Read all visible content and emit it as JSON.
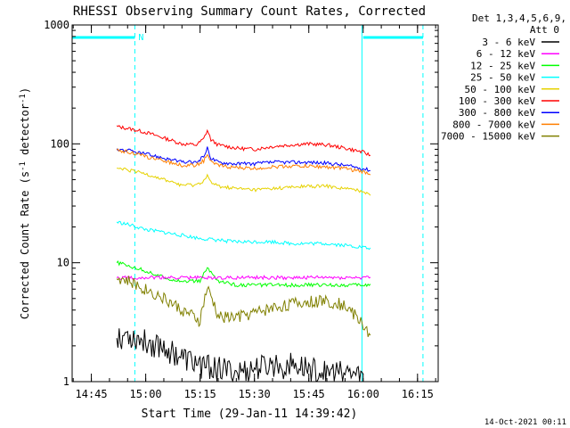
{
  "chart_data": {
    "type": "line",
    "title": "RHESSI Observing Summary Count Rates, Corrected",
    "xlabel": "Start Time (29-Jan-11 14:39:42)",
    "ylabel": "Corrected Count Rate (s",
    "ylabel_sup1": "-1",
    "ylabel_mid": " detector",
    "ylabel_sup2": "-1",
    "ylabel_end": ")",
    "yscale": "log",
    "ylim": [
      1,
      1000
    ],
    "xlim": [
      "14:39:42",
      "16:20:42"
    ],
    "x_ticks": [
      "14:45",
      "15:00",
      "15:15",
      "15:30",
      "15:45",
      "16:00",
      "16:15"
    ],
    "y_ticks": [
      "1",
      "10",
      "100",
      "1000"
    ],
    "grid": false,
    "legend": {
      "placement": "right",
      "header": [
        "Det 1,3,4,5,6,9,",
        "Att 0"
      ],
      "entries": [
        {
          "label": "3 - 6 keV",
          "color": "#000000"
        },
        {
          "label": "6 - 12 keV",
          "color": "#ff00ff"
        },
        {
          "label": "12 - 25 keV",
          "color": "#00ff00"
        },
        {
          "label": "25 - 50 keV",
          "color": "#00ffff"
        },
        {
          "label": "50 - 100 keV",
          "color": "#e6d200"
        },
        {
          "label": "100 - 300 keV",
          "color": "#ff0000"
        },
        {
          "label": "300 - 800 keV",
          "color": "#0000ff"
        },
        {
          "label": "800 - 7000 keV",
          "color": "#ff7f00"
        },
        {
          "label": "7000 - 15000 keV",
          "color": "#808000"
        }
      ]
    },
    "annotations": {
      "night_label": "N",
      "night_bars": [
        {
          "from": "14:39:42",
          "to": "14:57:00"
        },
        {
          "from": "16:00:00",
          "to": "16:16:30"
        }
      ],
      "vlines_solid": [
        "14:39:42",
        "15:59:40"
      ],
      "vlines_dashed": [
        "14:57:00",
        "16:16:30"
      ]
    },
    "series": [
      {
        "name": "100 - 300 keV",
        "color": "#ff0000",
        "x": [
          "14:52",
          "14:55",
          "15:00",
          "15:05",
          "15:10",
          "15:14",
          "15:16",
          "15:17",
          "15:18",
          "15:20",
          "15:25",
          "15:30",
          "15:35",
          "15:40",
          "15:45",
          "15:50",
          "15:55",
          "16:00",
          "16:02"
        ],
        "y": [
          140,
          135,
          125,
          112,
          100,
          98,
          110,
          130,
          108,
          98,
          92,
          90,
          95,
          98,
          100,
          98,
          92,
          85,
          80
        ]
      },
      {
        "name": "300 - 800 keV",
        "color": "#0000ff",
        "x": [
          "14:52",
          "14:55",
          "15:00",
          "15:05",
          "15:10",
          "15:14",
          "15:16",
          "15:17",
          "15:18",
          "15:20",
          "15:25",
          "15:30",
          "15:35",
          "15:40",
          "15:45",
          "15:50",
          "15:55",
          "16:00",
          "16:02"
        ],
        "y": [
          90,
          88,
          82,
          76,
          70,
          70,
          78,
          92,
          76,
          70,
          68,
          68,
          70,
          70,
          70,
          69,
          66,
          62,
          60
        ]
      },
      {
        "name": "800 - 7000 keV",
        "color": "#ff7f00",
        "x": [
          "14:52",
          "14:55",
          "15:00",
          "15:05",
          "15:10",
          "15:14",
          "15:16",
          "15:17",
          "15:18",
          "15:20",
          "15:25",
          "15:30",
          "15:35",
          "15:40",
          "15:45",
          "15:50",
          "15:55",
          "16:00",
          "16:02"
        ],
        "y": [
          88,
          86,
          78,
          72,
          66,
          66,
          72,
          82,
          70,
          66,
          63,
          62,
          64,
          65,
          65,
          64,
          62,
          58,
          56
        ]
      },
      {
        "name": "50 - 100 keV",
        "color": "#e6d200",
        "x": [
          "14:52",
          "14:55",
          "15:00",
          "15:05",
          "15:10",
          "15:14",
          "15:16",
          "15:17",
          "15:18",
          "15:20",
          "15:25",
          "15:30",
          "15:35",
          "15:40",
          "15:45",
          "15:50",
          "15:55",
          "16:00",
          "16:02"
        ],
        "y": [
          62,
          60,
          56,
          50,
          45,
          45,
          49,
          54,
          47,
          44,
          42,
          41,
          42,
          43,
          44,
          44,
          42,
          40,
          38
        ]
      },
      {
        "name": "25 - 50 keV",
        "color": "#00ffff",
        "x": [
          "14:52",
          "14:55",
          "15:00",
          "15:05",
          "15:10",
          "15:15",
          "15:20",
          "15:25",
          "15:30",
          "15:35",
          "15:40",
          "15:45",
          "15:50",
          "15:55",
          "16:00",
          "16:02"
        ],
        "y": [
          22,
          21,
          19,
          18,
          17,
          16,
          15.5,
          15,
          15,
          15,
          14.5,
          14.5,
          14.5,
          14,
          13.5,
          13
        ]
      },
      {
        "name": "12 - 25 keV",
        "color": "#00ff00",
        "x": [
          "14:52",
          "14:55",
          "15:00",
          "15:05",
          "15:10",
          "15:15",
          "15:17",
          "15:20",
          "15:25",
          "15:30",
          "15:35",
          "15:40",
          "15:45",
          "15:50",
          "15:55",
          "16:00",
          "16:02"
        ],
        "y": [
          10,
          9.5,
          8.5,
          7.5,
          7,
          7,
          9,
          7,
          6.5,
          6.5,
          6.5,
          6.5,
          6.5,
          6.5,
          6.5,
          6.5,
          6.5
        ]
      },
      {
        "name": "6 - 12 keV",
        "color": "#ff00ff",
        "x": [
          "14:52",
          "14:55",
          "15:00",
          "15:05",
          "15:10",
          "15:15",
          "15:20",
          "15:25",
          "15:30",
          "15:35",
          "15:40",
          "15:45",
          "15:50",
          "15:55",
          "16:00",
          "16:02"
        ],
        "y": [
          7.5,
          7.5,
          7.5,
          7.5,
          7.5,
          7.5,
          7.5,
          7.5,
          7.5,
          7.5,
          7.5,
          7.5,
          7.5,
          7.5,
          7.5,
          7.5
        ]
      },
      {
        "name": "7000 - 15000 keV",
        "color": "#808000",
        "x": [
          "14:52",
          "14:55",
          "15:00",
          "15:05",
          "15:10",
          "15:15",
          "15:17",
          "15:20",
          "15:25",
          "15:30",
          "15:35",
          "15:40",
          "15:45",
          "15:50",
          "15:55",
          "16:00",
          "16:02"
        ],
        "y": [
          7.5,
          7,
          6,
          5,
          4,
          3.2,
          6,
          3.5,
          3.5,
          3.8,
          4.2,
          4.5,
          4.7,
          4.8,
          4.4,
          3,
          2.5
        ]
      },
      {
        "name": "3 - 6 keV",
        "color": "#000000",
        "x": [
          "14:52",
          "14:55",
          "15:00",
          "15:05",
          "15:10",
          "15:15",
          "15:20",
          "15:25",
          "15:30",
          "15:35",
          "15:40",
          "15:45",
          "15:50",
          "15:55",
          "16:00"
        ],
        "y": [
          2.5,
          2.5,
          2.2,
          2,
          1.6,
          1.4,
          1.3,
          1.2,
          1.3,
          1.4,
          1.4,
          1.3,
          1.2,
          1.2,
          1.1
        ]
      }
    ]
  },
  "footer_timestamp": "14-Oct-2021 00:11"
}
